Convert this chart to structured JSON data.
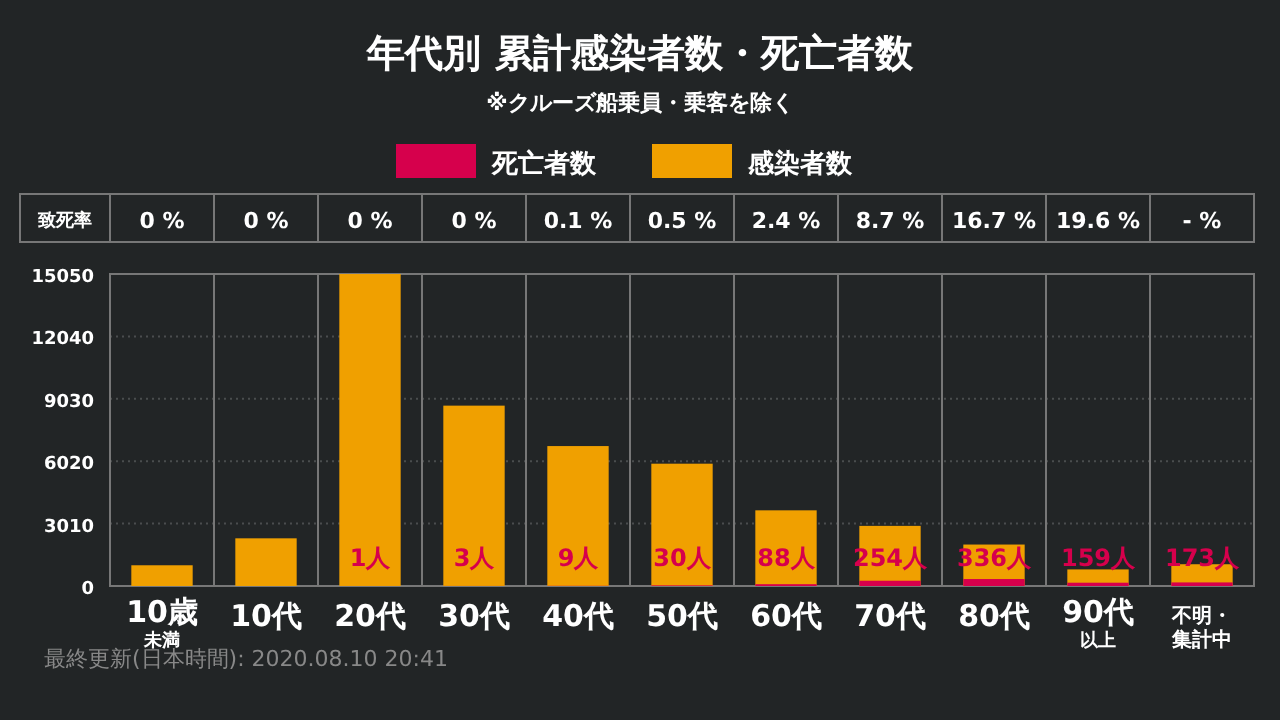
{
  "chart_data": {
    "type": "bar",
    "title": "年代別 累計感染者数・死亡者数",
    "subtitle": "※クルーズ船乗員・乗客を除く",
    "categories": [
      "10歳$_{未満}$",
      "10代",
      "20代",
      "30代",
      "40代",
      "50代",
      "60代",
      "70代",
      "80代",
      "90代$_{以上}$",
      "不明・集計中"
    ],
    "series": [
      {
        "name": "感染者数",
        "color": "#f0a000",
        "values": [
          1000,
          2300,
          15050,
          8700,
          6750,
          5900,
          3650,
          2900,
          2000,
          800,
          1050
        ]
      },
      {
        "name": "死亡者数",
        "color": "#d6004c",
        "values": [
          0,
          0,
          1,
          3,
          9,
          30,
          88,
          254,
          336,
          159,
          173
        ],
        "value_labels": [
          null,
          null,
          "1人",
          "3人",
          "9人",
          "30人",
          "88人",
          "254人",
          "336人",
          "159人",
          "173人"
        ]
      }
    ],
    "ylim": [
      0,
      15050
    ],
    "yticks": [
      0,
      3010,
      6020,
      9030,
      12040,
      15050
    ],
    "grid": "y",
    "legend": "top",
    "annotations": [
      "致死率",
      "0 %",
      "0 %",
      "0 %",
      "0 %",
      "0.1 %",
      "0.5 %",
      "2.4 %",
      "8.7 %",
      "16.7 %",
      "19.6 %",
      "- %",
      "最終更新(日本時間): 2020.08.10 20:41"
    ]
  }
}
